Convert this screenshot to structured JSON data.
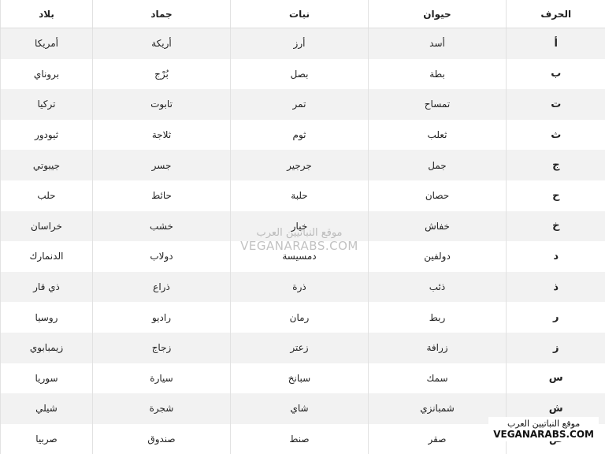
{
  "table": {
    "header": [
      "الحرف",
      "حيوان",
      "نبات",
      "جماد",
      "بلاد"
    ],
    "rows": [
      [
        "أ",
        "أسد",
        "أرز",
        "أريكة",
        "أمريكا"
      ],
      [
        "ب",
        "بطة",
        "بصل",
        "بُرْج",
        "بروناي"
      ],
      [
        "ت",
        "تمساح",
        "تمر",
        "تابوت",
        "تركيا"
      ],
      [
        "ث",
        "ثعلب",
        "ثوم",
        "ثلاجة",
        "ثيودور"
      ],
      [
        "ج",
        "جمل",
        "جرجير",
        "جسر",
        "جيبوتي"
      ],
      [
        "ح",
        "حصان",
        "حلبة",
        "حائط",
        "حلب"
      ],
      [
        "خ",
        "خفاش",
        "خيار",
        "خشب",
        "خراسان"
      ],
      [
        "د",
        "دولفين",
        "دمسيسة",
        "دولاب",
        "الدنمارك"
      ],
      [
        "ذ",
        "ذئب",
        "ذرة",
        "ذراع",
        "ذي قار"
      ],
      [
        "ر",
        "ربط",
        "رمان",
        "راديو",
        "روسيا"
      ],
      [
        "ز",
        "زرافة",
        "زعتر",
        "زجاج",
        "زيمبابوي"
      ],
      [
        "س",
        "سمك",
        "سبانخ",
        "سيارة",
        "سوريا"
      ],
      [
        "ش",
        "شمبانزي",
        "شاي",
        "شجرة",
        "شيلي"
      ],
      [
        "ص",
        "صقر",
        "صنط",
        "صندوق",
        "صربيا"
      ]
    ]
  },
  "watermark": {
    "arabic": "موقع النباتيين العرب",
    "latin": "VEGANARABS.COM"
  }
}
